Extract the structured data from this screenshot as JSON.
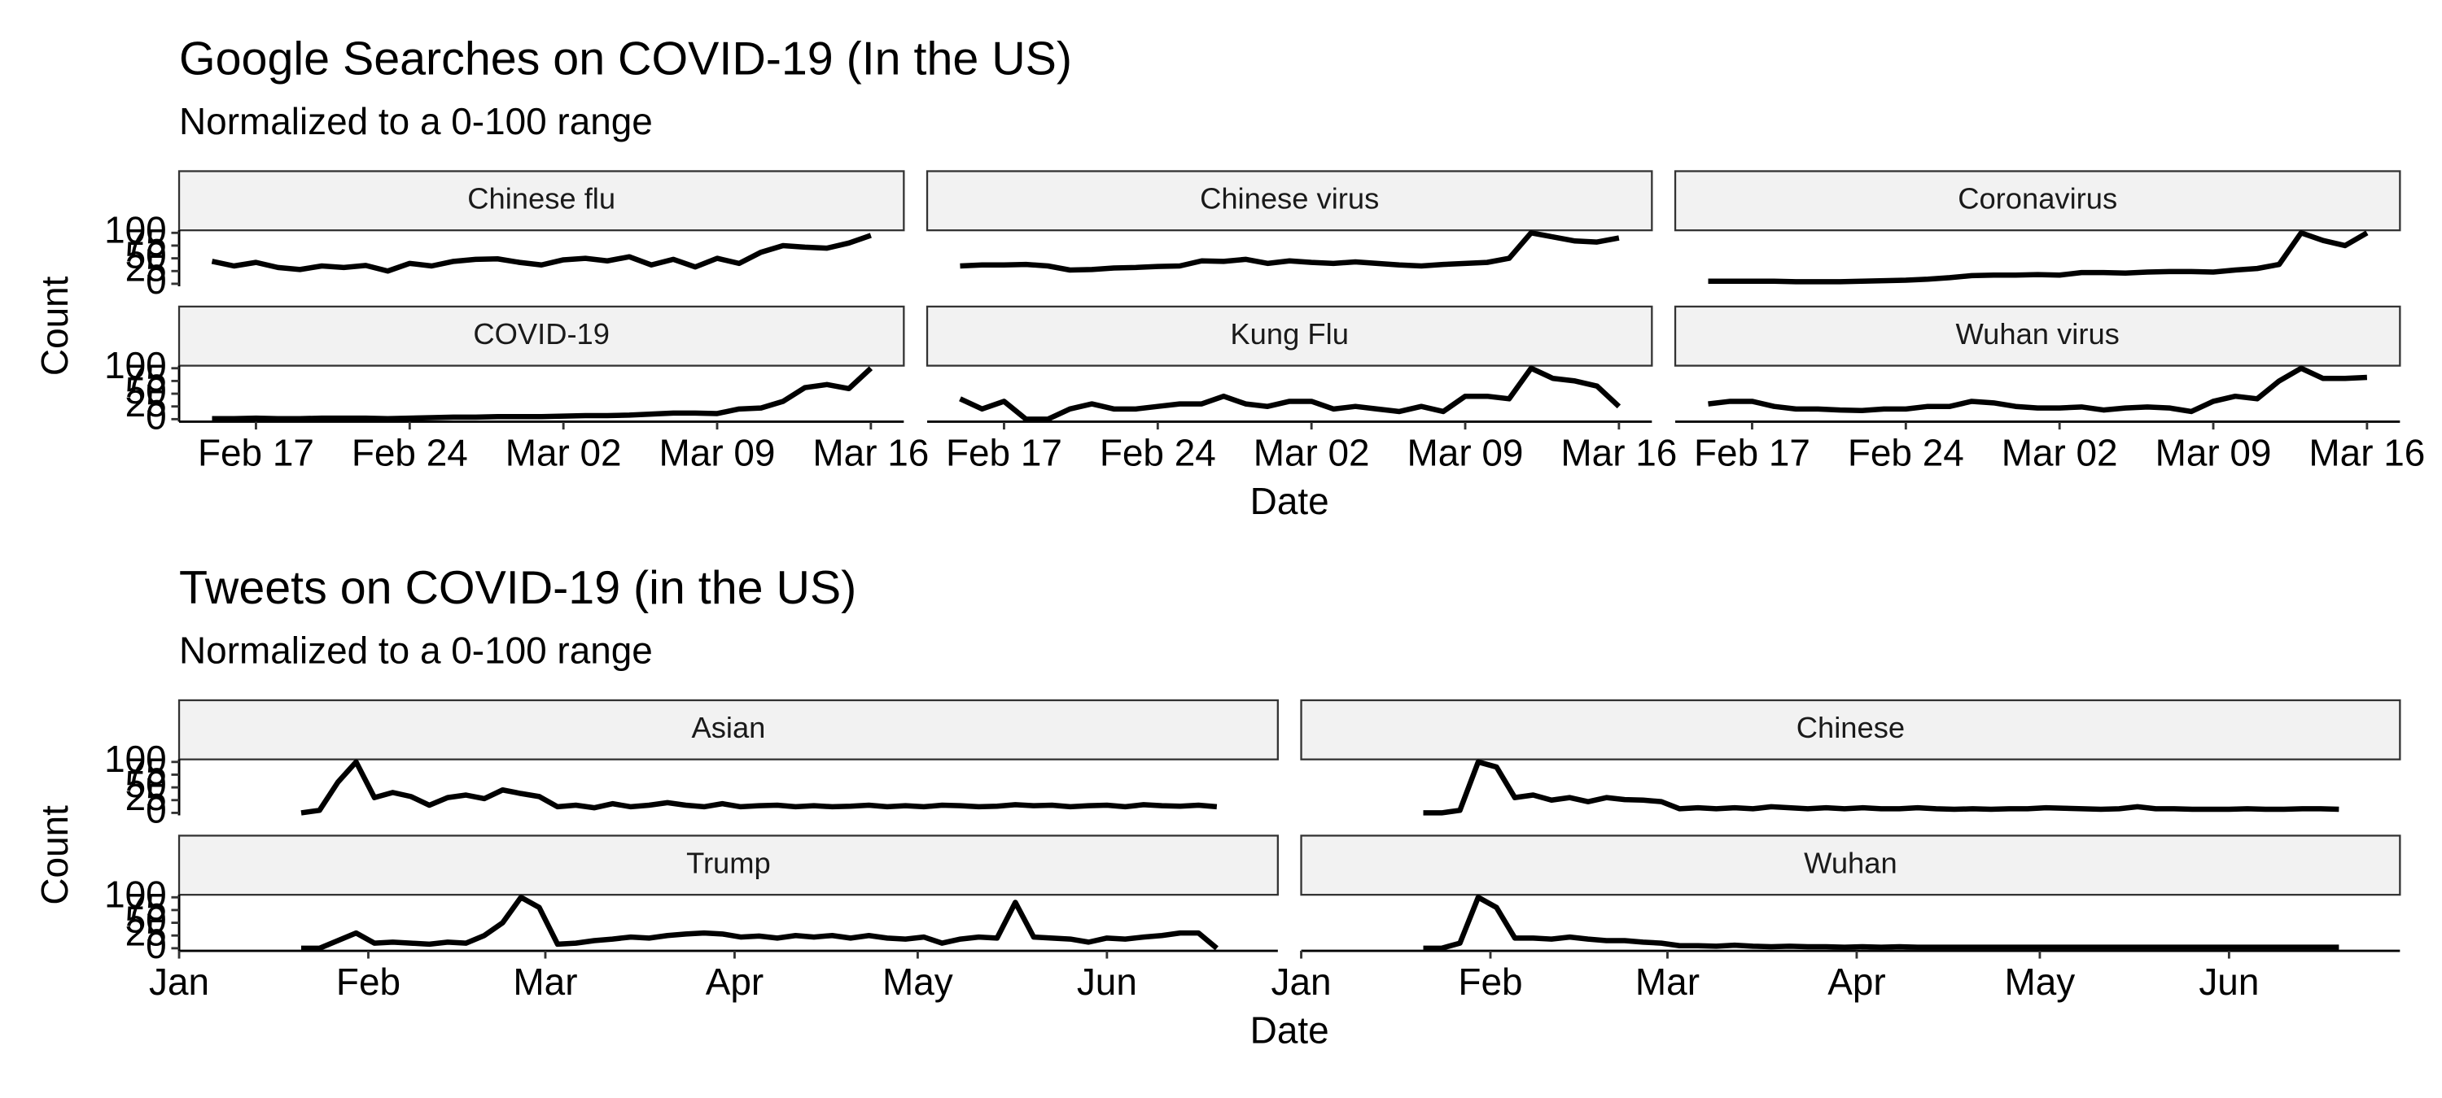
{
  "chart_data": [
    {
      "type": "line",
      "title": "Google Searches on COVID-19 (In the US)",
      "subtitle": "Normalized to a 0-100 range",
      "x_label": "Date",
      "y_label": "Count",
      "color": "#000000",
      "x": [
        45,
        46,
        47,
        48,
        49,
        50,
        51,
        52,
        53,
        54,
        55,
        56,
        57,
        58,
        59,
        60,
        61,
        62,
        63,
        64,
        65,
        66,
        67,
        68,
        69,
        70,
        71,
        72,
        73,
        74,
        75
      ],
      "xlim": [
        43.5,
        76.5
      ],
      "xticks": [
        {
          "value": 47,
          "label": "Feb 17"
        },
        {
          "value": 54,
          "label": "Feb 24"
        },
        {
          "value": 61,
          "label": "Mar 02"
        },
        {
          "value": 68,
          "label": "Mar 09"
        },
        {
          "value": 75,
          "label": "Mar 16"
        }
      ],
      "ylim": [
        -5,
        105
      ],
      "yticks": [
        0,
        25,
        50,
        75,
        100
      ],
      "series": [
        {
          "name": "Chinese flu",
          "values": [
            44,
            35,
            42,
            32,
            28,
            35,
            32,
            36,
            25,
            40,
            35,
            44,
            48,
            49,
            42,
            37,
            47,
            50,
            45,
            53,
            37,
            48,
            33,
            50,
            40,
            62,
            75,
            72,
            70,
            80,
            95
          ]
        },
        {
          "name": "Chinese virus",
          "values": [
            35,
            37,
            37,
            38,
            35,
            27,
            28,
            31,
            32,
            34,
            35,
            45,
            44,
            48,
            40,
            45,
            42,
            40,
            43,
            40,
            37,
            35,
            38,
            40,
            42,
            50,
            100,
            92,
            84,
            82,
            90
          ]
        },
        {
          "name": "Coronavirus",
          "values": [
            5,
            5,
            5,
            5,
            4,
            4,
            4,
            5,
            6,
            7,
            9,
            12,
            16,
            17,
            17,
            18,
            17,
            22,
            22,
            21,
            23,
            24,
            24,
            23,
            27,
            30,
            38,
            100,
            85,
            75,
            100
          ]
        },
        {
          "name": "COVID-19",
          "values": [
            1,
            1,
            2,
            1,
            1,
            2,
            2,
            2,
            1,
            2,
            3,
            4,
            4,
            5,
            5,
            5,
            6,
            7,
            7,
            8,
            10,
            12,
            12,
            11,
            20,
            22,
            35,
            62,
            68,
            60,
            100
          ]
        },
        {
          "name": "Kung Flu",
          "values": [
            40,
            20,
            35,
            0,
            0,
            20,
            30,
            20,
            20,
            25,
            30,
            30,
            45,
            30,
            25,
            35,
            35,
            20,
            25,
            20,
            15,
            25,
            15,
            45,
            45,
            40,
            100,
            80,
            75,
            65,
            25
          ]
        },
        {
          "name": "Wuhan virus",
          "values": [
            30,
            35,
            35,
            25,
            20,
            20,
            18,
            17,
            20,
            20,
            25,
            25,
            35,
            32,
            25,
            22,
            22,
            24,
            18,
            22,
            24,
            22,
            15,
            35,
            45,
            40,
            75,
            100,
            80,
            80,
            82
          ]
        }
      ]
    },
    {
      "type": "line",
      "title": "Tweets on COVID-19 (in the US)",
      "subtitle": "Normalized to a 0-100 range",
      "x_label": "Date",
      "y_label": "Count",
      "color": "#000000",
      "x": [
        20,
        23,
        26,
        29,
        32,
        35,
        38,
        41,
        44,
        47,
        50,
        53,
        56,
        59,
        62,
        65,
        68,
        71,
        74,
        77,
        80,
        83,
        86,
        89,
        92,
        95,
        98,
        101,
        104,
        107,
        110,
        113,
        116,
        119,
        122,
        125,
        128,
        131,
        134,
        137,
        140,
        143,
        146,
        149,
        152,
        155,
        158,
        161,
        164,
        167,
        170
      ],
      "xlim": [
        0,
        180
      ],
      "xticks": [
        {
          "value": 0,
          "label": "Jan"
        },
        {
          "value": 31,
          "label": "Feb"
        },
        {
          "value": 60,
          "label": "Mar"
        },
        {
          "value": 91,
          "label": "Apr"
        },
        {
          "value": 121,
          "label": "May"
        },
        {
          "value": 152,
          "label": "Jun"
        }
      ],
      "ylim": [
        -5,
        105
      ],
      "yticks": [
        0,
        25,
        50,
        75,
        100
      ],
      "series": [
        {
          "name": "Asian",
          "values": [
            0,
            5,
            60,
            100,
            30,
            40,
            32,
            15,
            30,
            35,
            28,
            45,
            38,
            32,
            12,
            15,
            10,
            18,
            12,
            15,
            20,
            15,
            12,
            18,
            12,
            14,
            15,
            12,
            14,
            12,
            13,
            15,
            12,
            14,
            12,
            15,
            14,
            12,
            13,
            16,
            14,
            15,
            12,
            14,
            15,
            12,
            16,
            14,
            13,
            15,
            12
          ]
        },
        {
          "name": "Chinese",
          "values": [
            0,
            0,
            5,
            100,
            90,
            30,
            35,
            25,
            30,
            22,
            30,
            26,
            25,
            22,
            8,
            10,
            8,
            10,
            8,
            12,
            10,
            8,
            10,
            8,
            10,
            8,
            8,
            10,
            8,
            7,
            8,
            7,
            8,
            8,
            10,
            9,
            8,
            7,
            8,
            12,
            8,
            8,
            7,
            7,
            7,
            8,
            7,
            7,
            8,
            8,
            7
          ]
        },
        {
          "name": "Trump",
          "values": [
            0,
            0,
            15,
            30,
            10,
            12,
            10,
            8,
            12,
            10,
            25,
            50,
            100,
            80,
            8,
            10,
            15,
            18,
            22,
            20,
            25,
            28,
            30,
            28,
            22,
            24,
            20,
            25,
            22,
            25,
            20,
            25,
            20,
            18,
            22,
            10,
            18,
            22,
            20,
            90,
            22,
            20,
            18,
            12,
            20,
            18,
            22,
            25,
            30,
            30,
            0
          ]
        },
        {
          "name": "Wuhan",
          "values": [
            0,
            0,
            10,
            100,
            80,
            20,
            20,
            18,
            22,
            18,
            15,
            15,
            12,
            10,
            5,
            5,
            4,
            6,
            4,
            3,
            4,
            3,
            3,
            2,
            3,
            2,
            3,
            2,
            2,
            2,
            2,
            2,
            2,
            2,
            2,
            2,
            2,
            2,
            2,
            2,
            2,
            2,
            2,
            2,
            2,
            2,
            2,
            2,
            2,
            2,
            2
          ]
        }
      ]
    }
  ]
}
